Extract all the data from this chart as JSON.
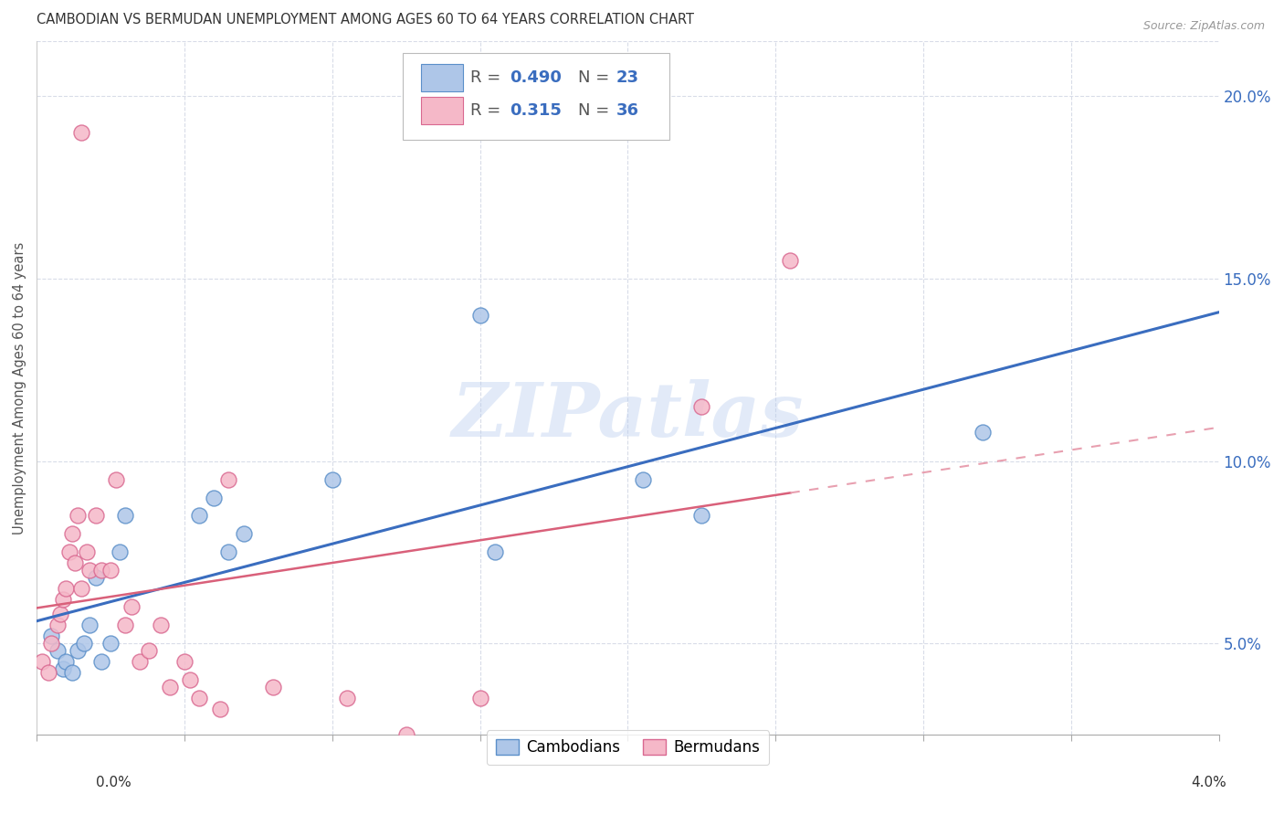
{
  "title": "CAMBODIAN VS BERMUDAN UNEMPLOYMENT AMONG AGES 60 TO 64 YEARS CORRELATION CHART",
  "source": "Source: ZipAtlas.com",
  "ylabel": "Unemployment Among Ages 60 to 64 years",
  "xlim": [
    0.0,
    4.0
  ],
  "ylim": [
    2.5,
    21.5
  ],
  "yticks": [
    5.0,
    10.0,
    15.0,
    20.0
  ],
  "xticks": [
    0.0,
    0.5,
    1.0,
    1.5,
    2.0,
    2.5,
    3.0,
    3.5,
    4.0
  ],
  "watermark": "ZIPatlas",
  "cambodian_color": "#aec6e8",
  "cambodian_edge": "#5b8fc9",
  "bermudan_color": "#f5b8c8",
  "bermudan_edge": "#d96890",
  "trend_cambodian_color": "#3a6dbf",
  "trend_bermudan_color": "#d9607a",
  "trend_bermudan_dashed_color": "#e8a0b0",
  "R_cambodian": 0.49,
  "N_cambodian": 23,
  "R_bermudan": 0.315,
  "N_bermudan": 36,
  "cambodian_x": [
    0.05,
    0.07,
    0.09,
    0.1,
    0.12,
    0.14,
    0.16,
    0.18,
    0.2,
    0.22,
    0.25,
    0.28,
    0.3,
    0.55,
    0.6,
    0.65,
    0.7,
    1.0,
    1.5,
    1.55,
    2.05,
    2.25,
    3.2
  ],
  "cambodian_y": [
    5.2,
    4.8,
    4.3,
    4.5,
    4.2,
    4.8,
    5.0,
    5.5,
    6.8,
    4.5,
    5.0,
    7.5,
    8.5,
    8.5,
    9.0,
    7.5,
    8.0,
    9.5,
    14.0,
    7.5,
    9.5,
    8.5,
    10.8
  ],
  "bermudan_x": [
    0.02,
    0.04,
    0.05,
    0.07,
    0.08,
    0.09,
    0.1,
    0.11,
    0.12,
    0.13,
    0.14,
    0.15,
    0.17,
    0.18,
    0.2,
    0.22,
    0.25,
    0.27,
    0.3,
    0.32,
    0.35,
    0.38,
    0.42,
    0.45,
    0.5,
    0.52,
    0.55,
    0.62,
    0.65,
    0.8,
    1.05,
    1.25,
    1.5,
    2.25,
    2.55,
    0.15
  ],
  "bermudan_y": [
    4.5,
    4.2,
    5.0,
    5.5,
    5.8,
    6.2,
    6.5,
    7.5,
    8.0,
    7.2,
    8.5,
    6.5,
    7.5,
    7.0,
    8.5,
    7.0,
    7.0,
    9.5,
    5.5,
    6.0,
    4.5,
    4.8,
    5.5,
    3.8,
    4.5,
    4.0,
    3.5,
    3.2,
    9.5,
    3.8,
    3.5,
    2.5,
    3.5,
    11.5,
    15.5,
    19.0
  ],
  "legend_R_color": "#4477cc",
  "background_color": "#ffffff",
  "grid_color": "#d8dce8"
}
